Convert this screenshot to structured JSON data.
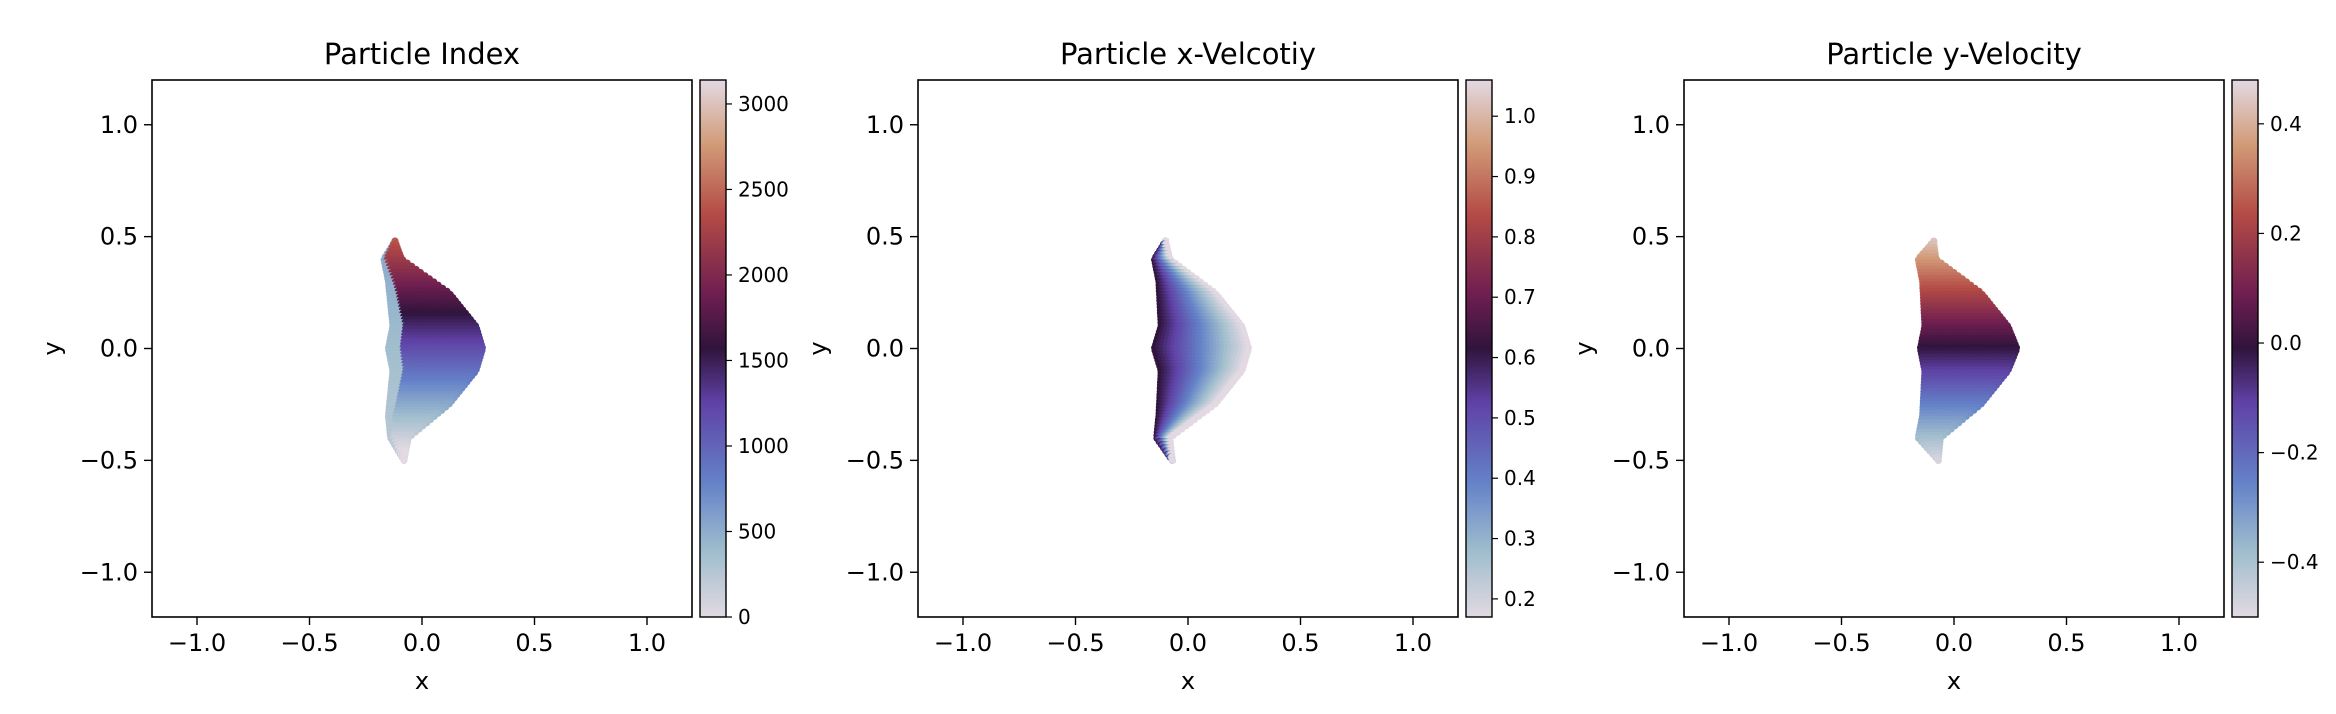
{
  "chart_data": [
    {
      "type": "scatter",
      "title": "Particle Index",
      "xlabel": "x",
      "ylabel": "y",
      "xlim": [
        -1.2,
        1.2
      ],
      "ylim": [
        -1.2,
        1.2
      ],
      "xticks": [
        -1.0,
        -0.5,
        0.0,
        0.5,
        1.0
      ],
      "yticks": [
        -1.0,
        -0.5,
        0.0,
        0.5,
        1.0
      ],
      "x_tick_labels": [
        "−1.0",
        "−0.5",
        "0.0",
        "0.5",
        "1.0"
      ],
      "y_tick_labels": [
        "−1.0",
        "−0.5",
        "0.0",
        "0.5",
        "1.0"
      ],
      "grid": false,
      "colormap": "twilight",
      "color_quantity": "index",
      "colorbar": {
        "range": [
          0,
          3140
        ],
        "ticks": [
          0,
          500,
          1000,
          1500,
          2000,
          2500,
          3000
        ],
        "tick_labels": [
          "0",
          "500",
          "1000",
          "1500",
          "2000",
          "2500",
          "3000"
        ]
      },
      "shape": {
        "front_x_at_y": [
          [
            0.48,
            -0.12
          ],
          [
            0.4,
            -0.09
          ],
          [
            0.25,
            0.12
          ],
          [
            0.1,
            0.24
          ],
          [
            0.0,
            0.27
          ],
          [
            -0.1,
            0.24
          ],
          [
            -0.25,
            0.12
          ],
          [
            -0.4,
            -0.06
          ],
          [
            -0.5,
            -0.08
          ]
        ],
        "back_x_at_y": [
          [
            0.48,
            -0.12
          ],
          [
            0.4,
            -0.17
          ],
          [
            0.3,
            -0.15
          ],
          [
            0.1,
            -0.13
          ],
          [
            0.0,
            -0.15
          ],
          [
            -0.1,
            -0.13
          ],
          [
            -0.3,
            -0.15
          ],
          [
            -0.4,
            -0.14
          ],
          [
            -0.5,
            -0.08
          ]
        ]
      }
    },
    {
      "type": "scatter",
      "title": "Particle x-Velcotiy",
      "xlabel": "x",
      "ylabel": "y",
      "xlim": [
        -1.2,
        1.2
      ],
      "ylim": [
        -1.2,
        1.2
      ],
      "xticks": [
        -1.0,
        -0.5,
        0.0,
        0.5,
        1.0
      ],
      "yticks": [
        -1.0,
        -0.5,
        0.0,
        0.5,
        1.0
      ],
      "x_tick_labels": [
        "−1.0",
        "−0.5",
        "0.0",
        "0.5",
        "1.0"
      ],
      "y_tick_labels": [
        "−1.0",
        "−0.5",
        "0.0",
        "0.5",
        "1.0"
      ],
      "grid": false,
      "colormap": "twilight",
      "color_quantity": "x-velocity",
      "colorbar": {
        "range": [
          0.17,
          1.06
        ],
        "ticks": [
          0.2,
          0.3,
          0.4,
          0.5,
          0.6,
          0.7,
          0.8,
          0.9,
          1.0
        ],
        "tick_labels": [
          "0.2",
          "0.3",
          "0.4",
          "0.5",
          "0.6",
          "0.7",
          "0.8",
          "0.9",
          "1.0"
        ]
      },
      "shape": {
        "front_x_at_y": [
          [
            0.48,
            -0.1
          ],
          [
            0.4,
            -0.08
          ],
          [
            0.25,
            0.12
          ],
          [
            0.1,
            0.24
          ],
          [
            0.0,
            0.27
          ],
          [
            -0.1,
            0.24
          ],
          [
            -0.25,
            0.12
          ],
          [
            -0.4,
            -0.08
          ],
          [
            -0.5,
            -0.07
          ]
        ],
        "back_x_at_y": [
          [
            0.48,
            -0.1
          ],
          [
            0.4,
            -0.15
          ],
          [
            0.3,
            -0.13
          ],
          [
            0.1,
            -0.12
          ],
          [
            0.0,
            -0.15
          ],
          [
            -0.1,
            -0.12
          ],
          [
            -0.3,
            -0.13
          ],
          [
            -0.4,
            -0.14
          ],
          [
            -0.5,
            -0.07
          ]
        ]
      }
    },
    {
      "type": "scatter",
      "title": "Particle y-Velocity",
      "xlabel": "x",
      "ylabel": "y",
      "xlim": [
        -1.2,
        1.2
      ],
      "ylim": [
        -1.2,
        1.2
      ],
      "xticks": [
        -1.0,
        -0.5,
        0.0,
        0.5,
        1.0
      ],
      "yticks": [
        -1.0,
        -0.5,
        0.0,
        0.5,
        1.0
      ],
      "x_tick_labels": [
        "−1.0",
        "−0.5",
        "0.0",
        "0.5",
        "1.0"
      ],
      "y_tick_labels": [
        "−1.0",
        "−0.5",
        "0.0",
        "0.5",
        "1.0"
      ],
      "grid": false,
      "colormap": "twilight",
      "color_quantity": "y-velocity",
      "colorbar": {
        "range": [
          -0.5,
          0.48
        ],
        "ticks": [
          -0.4,
          -0.2,
          0.0,
          0.2,
          0.4
        ],
        "tick_labels": [
          "−0.4",
          "−0.2",
          "0.0",
          "0.2",
          "0.4"
        ]
      },
      "shape": {
        "front_x_at_y": [
          [
            0.48,
            -0.09
          ],
          [
            0.4,
            -0.08
          ],
          [
            0.25,
            0.12
          ],
          [
            0.1,
            0.24
          ],
          [
            0.0,
            0.28
          ],
          [
            -0.1,
            0.24
          ],
          [
            -0.25,
            0.12
          ],
          [
            -0.4,
            -0.06
          ],
          [
            -0.5,
            -0.07
          ]
        ],
        "back_x_at_y": [
          [
            0.48,
            -0.09
          ],
          [
            0.4,
            -0.16
          ],
          [
            0.3,
            -0.14
          ],
          [
            0.1,
            -0.13
          ],
          [
            0.0,
            -0.15
          ],
          [
            -0.1,
            -0.13
          ],
          [
            -0.3,
            -0.14
          ],
          [
            -0.4,
            -0.16
          ],
          [
            -0.5,
            -0.07
          ]
        ]
      }
    }
  ]
}
